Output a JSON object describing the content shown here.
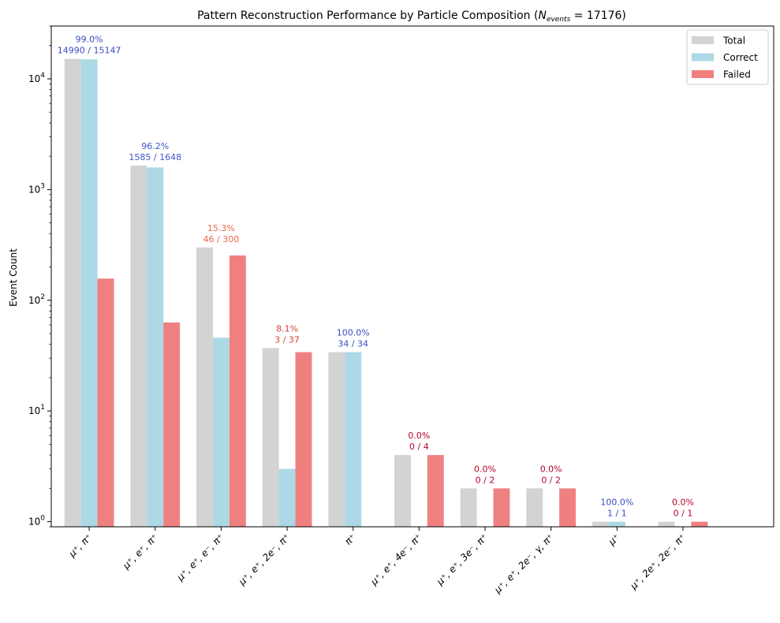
{
  "chart_data": {
    "type": "bar",
    "title_prefix": "Pattern Reconstruction Performance by Particle Composition (",
    "title_n": "N",
    "title_sub": "events",
    "title_value": " = 17176)",
    "xlabel": "",
    "ylabel": "Event Count",
    "yscale": "log",
    "ylim": [
      0.9,
      30000
    ],
    "yticks": [
      {
        "value": 1,
        "base": "10",
        "exp": "0"
      },
      {
        "value": 10,
        "base": "10",
        "exp": "1"
      },
      {
        "value": 100,
        "base": "10",
        "exp": "2"
      },
      {
        "value": 1000,
        "base": "10",
        "exp": "3"
      },
      {
        "value": 10000,
        "base": "10",
        "exp": "4"
      }
    ],
    "legend_position": "top-right",
    "categories": [
      "μ⁺, π⁺",
      "μ⁺, e⁺, π⁺",
      "μ⁺, e⁺, e⁻, π⁺",
      "μ⁺, e⁺, 2e⁻, π⁺",
      "π⁺",
      "μ⁺, e⁺, 4e⁻, π⁺",
      "μ⁺, e⁺, 3e⁻, π⁺",
      "μ⁺, e⁺, 2e⁻, γ, π⁺",
      "μ⁺",
      "μ⁺, 2e⁺, 2e⁻, π⁺"
    ],
    "series": [
      {
        "name": "Total",
        "color": "#d3d3d3",
        "values": [
          15147,
          1648,
          300,
          37,
          34,
          4,
          2,
          2,
          1,
          1
        ]
      },
      {
        "name": "Correct",
        "color": "#add8e6",
        "values": [
          14990,
          1585,
          46,
          3,
          34,
          0,
          0,
          0,
          1,
          0
        ]
      },
      {
        "name": "Failed",
        "color": "#f08080",
        "values": [
          157,
          63,
          254,
          34,
          0,
          4,
          2,
          2,
          0,
          1
        ]
      }
    ],
    "annotations": [
      {
        "pct": "99.0%",
        "frac": "14990 / 15147",
        "color": "#3a4cc0"
      },
      {
        "pct": "96.2%",
        "frac": "1585 / 1648",
        "color": "#3f55c9"
      },
      {
        "pct": "15.3%",
        "frac": "46 / 300",
        "color": "#e8674f"
      },
      {
        "pct": "8.1%",
        "frac": "3 / 37",
        "color": "#d44536"
      },
      {
        "pct": "100.0%",
        "frac": "34 / 34",
        "color": "#3a4cc0"
      },
      {
        "pct": "0.0%",
        "frac": "0 / 4",
        "color": "#b40426"
      },
      {
        "pct": "0.0%",
        "frac": "0 / 2",
        "color": "#b40426"
      },
      {
        "pct": "0.0%",
        "frac": "0 / 2",
        "color": "#b40426"
      },
      {
        "pct": "100.0%",
        "frac": "1 / 1",
        "color": "#3a4cc0"
      },
      {
        "pct": "0.0%",
        "frac": "0 / 1",
        "color": "#b40426"
      }
    ]
  }
}
